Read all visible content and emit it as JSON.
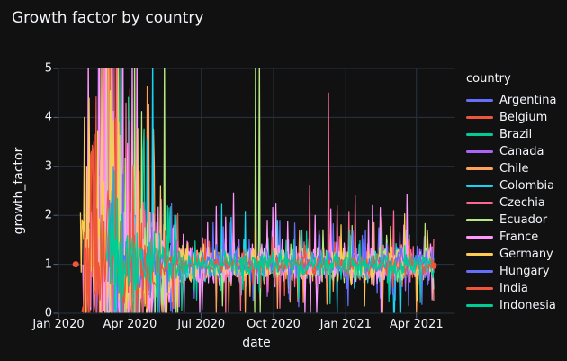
{
  "figure": {
    "title": "Growth factor by country",
    "background": "#111111",
    "text_color": "#f2f5fa",
    "grid_color": "#283442",
    "tick_color": "#506784"
  },
  "legend": {
    "title": "country"
  },
  "chart_data": {
    "type": "line",
    "title": "Growth factor by country",
    "xlabel": "date",
    "ylabel": "growth_factor",
    "x_axis": {
      "range_days": [
        0,
        505
      ],
      "epoch_label": "days since Jan 1 2020",
      "ticks": [
        {
          "label": "Jan 2020",
          "day": 0
        },
        {
          "label": "Apr 2020",
          "day": 91
        },
        {
          "label": "Jul 2020",
          "day": 182
        },
        {
          "label": "Oct 2020",
          "day": 274
        },
        {
          "label": "Jan 2021",
          "day": 366
        },
        {
          "label": "Apr 2021",
          "day": 456
        }
      ]
    },
    "y_axis": {
      "range": [
        0,
        5
      ],
      "ticks": [
        0,
        1,
        2,
        3,
        4,
        5
      ]
    },
    "baseline": 1.0,
    "series": [
      {
        "name": "Argentina",
        "color": "#636EFA",
        "seed": 1,
        "start_day": 64,
        "end_day": 478,
        "early_sigma": 0.55,
        "late_sigma": 0.13,
        "weekly": 0.04,
        "spikes": [
          [
            197,
            1.85
          ],
          [
            230,
            1.4
          ],
          [
            243,
            1.5
          ]
        ]
      },
      {
        "name": "Belgium",
        "color": "#EF553B",
        "seed": 2,
        "start_day": 34,
        "end_day": 478,
        "early_sigma": 0.85,
        "late_sigma": 0.1,
        "weekly": 0.05,
        "spikes": [
          [
            44,
            3.2
          ],
          [
            58,
            5.5
          ],
          [
            71,
            5.5
          ],
          [
            352,
            1.45
          ]
        ]
      },
      {
        "name": "Brazil",
        "color": "#00CC96",
        "seed": 3,
        "start_day": 56,
        "end_day": 478,
        "early_sigma": 0.7,
        "late_sigma": 0.12,
        "weekly": 0.05,
        "spikes": [
          [
            60,
            5.5
          ],
          [
            75,
            3.0
          ]
        ]
      },
      {
        "name": "Canada",
        "color": "#AB63FA",
        "seed": 4,
        "start_day": 45,
        "end_day": 478,
        "early_sigma": 0.75,
        "late_sigma": 0.1,
        "weekly": 0.04,
        "spikes": [
          [
            53,
            2.8
          ],
          [
            63,
            5.5
          ],
          [
            230,
            1.5
          ]
        ]
      },
      {
        "name": "Chile",
        "color": "#FFA15A",
        "seed": 5,
        "start_day": 56,
        "end_day": 478,
        "early_sigma": 0.9,
        "late_sigma": 0.16,
        "weekly": 0.06,
        "spikes": [
          [
            57,
            5.5
          ],
          [
            64,
            5.5
          ],
          [
            90,
            2.5
          ]
        ]
      },
      {
        "name": "Colombia",
        "color": "#19D3F3",
        "seed": 6,
        "start_day": 62,
        "end_day": 478,
        "early_sigma": 0.8,
        "late_sigma": 0.18,
        "weekly": 0.05,
        "spikes": [
          [
            120,
            5.5
          ],
          [
            150,
            2.0
          ],
          [
            279,
            1.9
          ],
          [
            310,
            1.7
          ],
          [
            427,
            0.02
          ],
          [
            428,
            0.02
          ],
          [
            435,
            0.02
          ],
          [
            436,
            0.02
          ],
          [
            447,
            1.6
          ]
        ]
      },
      {
        "name": "Czechia",
        "color": "#FF6692",
        "seed": 7,
        "start_day": 58,
        "end_day": 478,
        "early_sigma": 0.9,
        "late_sigma": 0.16,
        "weekly": 0.05,
        "spikes": [
          [
            62,
            5.5
          ],
          [
            67,
            5.5
          ],
          [
            70,
            3.5
          ],
          [
            320,
            2.6
          ],
          [
            344,
            4.5
          ],
          [
            355,
            2.2
          ],
          [
            378,
            2.4
          ],
          [
            410,
            1.9
          ]
        ]
      },
      {
        "name": "Ecuador",
        "color": "#B6E880",
        "seed": 8,
        "start_day": 58,
        "end_day": 478,
        "early_sigma": 1.0,
        "late_sigma": 0.15,
        "weekly": 0.05,
        "spikes": [
          [
            61,
            5.5
          ],
          [
            68,
            5.5
          ],
          [
            135,
            5.5
          ],
          [
            136,
            0.02
          ],
          [
            150,
            0.02
          ],
          [
            209,
            0.15
          ],
          [
            250,
            0.02
          ],
          [
            251,
            5.5
          ],
          [
            256,
            5.5
          ],
          [
            257,
            0.02
          ]
        ]
      },
      {
        "name": "France",
        "color": "#FF97FF",
        "seed": 9,
        "start_day": 31,
        "end_day": 478,
        "early_sigma": 1.05,
        "late_sigma": 0.21,
        "weekly": 0.06,
        "spikes": [
          [
            38,
            5.5
          ],
          [
            45,
            0.02
          ],
          [
            57,
            5.5
          ],
          [
            60,
            5.5
          ],
          [
            94,
            5.5
          ],
          [
            100,
            5.5
          ],
          [
            101,
            0.02
          ],
          [
            160,
            0.02
          ],
          [
            190,
            1.85
          ],
          [
            266,
            1.9
          ],
          [
            327,
            2.0
          ],
          [
            400,
            2.2
          ],
          [
            440,
            1.8
          ]
        ]
      },
      {
        "name": "Germany",
        "color": "#FECB52",
        "seed": 10,
        "start_day": 28,
        "end_day": 478,
        "early_sigma": 0.7,
        "late_sigma": 0.15,
        "weekly": 0.07,
        "spikes": [
          [
            33,
            4.0
          ],
          [
            40,
            2.5
          ],
          [
            55,
            5.5
          ],
          [
            76,
            5.5
          ],
          [
            470,
            1.7
          ]
        ]
      },
      {
        "name": "Hungary",
        "color": "#636EFA",
        "seed": 11,
        "start_day": 63,
        "end_day": 478,
        "early_sigma": 0.6,
        "late_sigma": 0.13,
        "weekly": 0.05,
        "spikes": [
          [
            70,
            3.0
          ],
          [
            210,
            1.6
          ]
        ]
      },
      {
        "name": "India",
        "color": "#EF553B",
        "seed": 12,
        "start_day": 30,
        "end_day": 478,
        "early_sigma": 0.6,
        "late_sigma": 0.08,
        "weekly": 0.04,
        "spikes": [
          [
            45,
            3.5
          ],
          [
            55,
            2.0
          ]
        ]
      },
      {
        "name": "Indonesia",
        "color": "#00CC96",
        "seed": 13,
        "start_day": 61,
        "end_day": 478,
        "early_sigma": 0.6,
        "late_sigma": 0.12,
        "weekly": 0.05,
        "spikes": [
          [
            68,
            2.5
          ],
          [
            300,
            1.5
          ]
        ]
      }
    ],
    "markers": [
      {
        "day": 22,
        "value": 1.0,
        "color": "#EF553B"
      },
      {
        "day": 478,
        "value": 0.97,
        "color": "#EF553B"
      }
    ]
  }
}
